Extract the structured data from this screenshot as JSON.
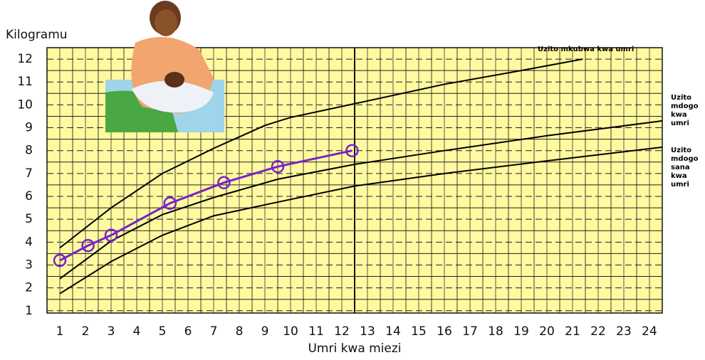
{
  "chart_data": {
    "type": "line",
    "y_label": "Kilogramu",
    "x_label": "Umri kwa miezi",
    "xlim": [
      0.5,
      24.5
    ],
    "ylim": [
      0.9,
      12.5
    ],
    "xticks": [
      1,
      2,
      3,
      4,
      5,
      6,
      7,
      8,
      9,
      10,
      11,
      12,
      13,
      14,
      15,
      16,
      17,
      18,
      19,
      20,
      21,
      22,
      23,
      24
    ],
    "yticks": [
      1,
      2,
      3,
      4,
      5,
      6,
      7,
      8,
      9,
      10,
      11,
      12
    ],
    "grid": true,
    "background": "#fff9a0",
    "series": [
      {
        "name": "Uzito mkubwa kwa umri",
        "color": "#000000",
        "x": [
          1,
          3,
          5,
          7,
          8,
          9,
          10,
          12.5,
          16,
          19,
          21.4
        ],
        "values": [
          3.75,
          5.5,
          7.0,
          8.1,
          8.6,
          9.1,
          9.45,
          10.05,
          10.9,
          11.5,
          12.0
        ]
      },
      {
        "name": "Uzito mdogo kwa umri",
        "color": "#000000",
        "x": [
          1,
          3,
          5,
          7,
          9.5,
          12.5,
          16,
          20,
          24.5
        ],
        "values": [
          2.4,
          4.05,
          5.2,
          5.95,
          6.75,
          7.4,
          8.0,
          8.65,
          9.3
        ]
      },
      {
        "name": "Uzito mdogo sana kwa umri",
        "color": "#000000",
        "x": [
          1,
          3,
          5,
          7,
          9.5,
          12.5,
          16,
          20,
          24.5
        ],
        "values": [
          1.75,
          3.15,
          4.3,
          5.15,
          5.75,
          6.45,
          7.0,
          7.55,
          8.15
        ]
      },
      {
        "name": "Mtoto",
        "color": "#7a22c8",
        "x": [
          1,
          2.1,
          3,
          5.3,
          7.4,
          9.5,
          12.4
        ],
        "values": [
          3.2,
          3.85,
          4.3,
          5.7,
          6.6,
          7.3,
          8.0
        ]
      }
    ],
    "annotations": [
      {
        "lines": [
          "Uzito mkubwa kwa umri"
        ]
      },
      {
        "lines": [
          "Uzito",
          "mdogo",
          "kwa",
          "umri"
        ]
      },
      {
        "lines": [
          "Uzito",
          "mdogo",
          "sana",
          "kwa",
          "umri"
        ]
      }
    ]
  }
}
